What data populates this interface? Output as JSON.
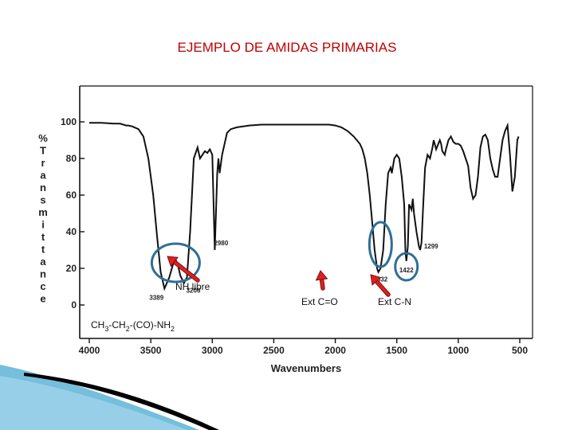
{
  "slide": {
    "title": "EJEMPLO DE AMIDAS PRIMARIAS",
    "compound_formula": {
      "base": [
        "CH",
        "-CH",
        "-(CO)-NH"
      ],
      "subscripts": [
        "3",
        "2",
        "2"
      ]
    }
  },
  "chart_data": {
    "type": "line",
    "xlabel": "Wavenumbers",
    "ylabel": "% Transmittance",
    "xlim": [
      4000,
      500
    ],
    "ylim": [
      0,
      100
    ],
    "x_ticks": [
      4000,
      3500,
      3000,
      2500,
      2000,
      1500,
      1000,
      500
    ],
    "y_ticks": [
      0,
      20,
      40,
      60,
      80,
      100
    ],
    "grid": false,
    "series": [
      {
        "x": [
          4000,
          3900,
          3800,
          3750,
          3700,
          3680,
          3650,
          3600,
          3560,
          3520,
          3480,
          3450,
          3420,
          3389,
          3350,
          3320,
          3300,
          3280,
          3260,
          3230,
          3206,
          3180,
          3150,
          3120,
          3100,
          3080,
          3060,
          3040,
          3020,
          3000,
          2980,
          2960,
          2950,
          2940,
          2920,
          2900,
          2880,
          2850,
          2800,
          2700,
          2600,
          2500,
          2400,
          2300,
          2200,
          2100,
          2050,
          2000,
          1950,
          1900,
          1850,
          1800,
          1780,
          1760,
          1740,
          1720,
          1700,
          1680,
          1660,
          1650,
          1632,
          1610,
          1590,
          1570,
          1550,
          1540,
          1520,
          1500,
          1480,
          1460,
          1440,
          1430,
          1422,
          1410,
          1400,
          1380,
          1370,
          1360,
          1340,
          1320,
          1310,
          1299,
          1285,
          1270,
          1250,
          1230,
          1210,
          1200,
          1180,
          1150,
          1140,
          1130,
          1110,
          1100,
          1080,
          1060,
          1040,
          1020,
          1000,
          980,
          960,
          940,
          920,
          900,
          880,
          860,
          840,
          820,
          800,
          780,
          760,
          740,
          720,
          700,
          680,
          660,
          640,
          620,
          600,
          580,
          560,
          540,
          520,
          510
        ],
        "y": [
          99.5,
          99.5,
          99,
          99,
          98,
          98,
          97.5,
          96,
          92,
          80,
          60,
          38,
          18,
          9,
          15,
          22,
          25,
          22,
          16,
          12,
          15,
          40,
          80,
          86,
          80,
          82,
          84,
          83,
          85,
          82,
          30,
          72,
          80,
          72,
          82,
          88,
          94,
          96,
          97,
          98,
          98.5,
          98.5,
          98.5,
          98.5,
          98.5,
          98.5,
          98.5,
          98,
          97,
          95,
          92,
          88,
          85,
          80,
          72,
          60,
          45,
          30,
          20,
          18,
          20,
          30,
          55,
          72,
          75,
          72,
          80,
          82,
          80,
          70,
          55,
          30,
          24,
          32,
          55,
          52,
          58,
          50,
          40,
          32,
          30,
          34,
          55,
          75,
          82,
          80,
          86,
          90,
          85,
          90,
          88,
          84,
          82,
          85,
          90,
          92,
          89,
          88,
          88,
          87,
          84,
          80,
          76,
          64,
          58,
          60,
          70,
          86,
          92,
          93,
          90,
          80,
          74,
          70,
          70,
          80,
          90,
          95,
          98,
          82,
          62,
          70,
          90,
          92
        ]
      }
    ],
    "annotations": [
      {
        "x": 3389,
        "label": "3389",
        "circled": true
      },
      {
        "x": 3206,
        "label": "3206",
        "circled": true
      },
      {
        "x": 2980,
        "label": "2980"
      },
      {
        "x": 1632,
        "label": "1632",
        "circled": true
      },
      {
        "x": 1422,
        "label": "1422",
        "circled": true
      },
      {
        "x": 1299,
        "label": "1299"
      }
    ],
    "callouts": [
      {
        "text": "NH libre",
        "points_to": 3206,
        "color": "#cc0000"
      },
      {
        "text": "Ext C=O",
        "points_to": 1632,
        "color": "#cc0000"
      },
      {
        "text": "Ext C-N",
        "points_to": 1422,
        "color": "#cc0000"
      }
    ],
    "accent_circle_color": "#2e6f97"
  },
  "decor": {
    "swoosh_color_dark": "#000000",
    "swoosh_color_light": "#5db3d6"
  }
}
